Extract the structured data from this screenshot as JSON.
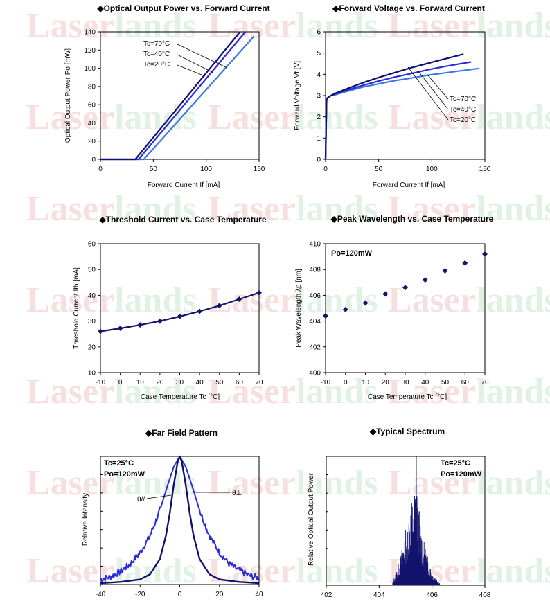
{
  "watermark": {
    "part1": "Laser",
    "part2": "lands"
  },
  "colors": {
    "dark": "#101070",
    "mid": "#2a2ad8",
    "light": "#3a78e6",
    "marker": "#14146e",
    "axis": "#000000"
  },
  "chart_data": [
    {
      "type": "line",
      "title": "◆Optical Output Power vs. Forward Current",
      "xlabel": "Forward Current If [mA]",
      "ylabel": "Optical Output Power Po [mW]",
      "xlim": [
        0,
        150
      ],
      "ylim": [
        0,
        140
      ],
      "xticks": [
        0,
        50,
        100,
        150
      ],
      "yticks": [
        0,
        20,
        40,
        60,
        80,
        100,
        120,
        140
      ],
      "grid": false,
      "series": [
        {
          "name": "Tc=70°C",
          "color": "light",
          "x": [
            0,
            41,
            145
          ],
          "y": [
            0,
            0,
            135
          ]
        },
        {
          "name": "Tc=40°C",
          "color": "mid",
          "x": [
            0,
            36,
            137
          ],
          "y": [
            0,
            0,
            140
          ]
        },
        {
          "name": "Tc=20°C",
          "color": "dark",
          "x": [
            0,
            33,
            132
          ],
          "y": [
            0,
            0,
            140
          ]
        }
      ]
    },
    {
      "type": "line",
      "title": "◆Forward Voltage vs. Forward Current",
      "xlabel": "Forward Current If [mA]",
      "ylabel": "Forward Voltage Vf [V]",
      "xlim": [
        0,
        150
      ],
      "ylim": [
        0,
        6
      ],
      "xticks": [
        0,
        50,
        100,
        150
      ],
      "yticks": [
        0,
        1,
        2,
        3,
        4,
        5,
        6
      ],
      "grid": false,
      "series": [
        {
          "name": "Tc=70°C",
          "color": "light",
          "x": [
            0,
            1,
            2,
            5,
            10,
            20,
            35,
            50,
            65,
            80,
            95,
            110,
            125,
            145
          ],
          "y": [
            0,
            2.8,
            2.9,
            3.0,
            3.05,
            3.2,
            3.4,
            3.55,
            3.7,
            3.82,
            3.95,
            4.05,
            4.15,
            4.28
          ]
        },
        {
          "name": "Tc=40°C",
          "color": "mid",
          "x": [
            0,
            1,
            2,
            5,
            10,
            20,
            35,
            50,
            65,
            80,
            95,
            110,
            125,
            137
          ],
          "y": [
            0,
            2.8,
            2.9,
            3.0,
            3.1,
            3.25,
            3.48,
            3.68,
            3.87,
            4.03,
            4.2,
            4.35,
            4.48,
            4.58
          ]
        },
        {
          "name": "Tc=20°C",
          "color": "dark",
          "x": [
            0,
            1,
            2,
            5,
            10,
            20,
            35,
            50,
            65,
            80,
            95,
            110,
            130
          ],
          "y": [
            0,
            2.8,
            2.9,
            3.0,
            3.12,
            3.32,
            3.6,
            3.85,
            4.08,
            4.3,
            4.5,
            4.7,
            4.95
          ]
        }
      ],
      "annotations": [
        "Tc=70°C",
        "Tc=40°C",
        "Tc=20°C"
      ]
    },
    {
      "type": "line",
      "title": "◆Threshold Current vs. Case Temperature",
      "xlabel": "Case Temperature Tc [°C]",
      "ylabel": "Threshold Current Ith [mA]",
      "xlim": [
        -10,
        70
      ],
      "ylim": [
        10,
        60
      ],
      "xticks": [
        -10,
        0,
        10,
        20,
        30,
        40,
        50,
        60,
        70
      ],
      "yticks": [
        10,
        20,
        30,
        40,
        50,
        60
      ],
      "grid": false,
      "x": [
        -10,
        0,
        10,
        20,
        30,
        40,
        50,
        60,
        70
      ],
      "y": [
        26,
        27.2,
        28.5,
        30,
        31.8,
        33.8,
        36,
        38.5,
        41
      ]
    },
    {
      "type": "scatter",
      "title": "◆Peak Wavelength vs. Case Temperature",
      "xlabel": "Case Temperature Tc [°C]",
      "ylabel": "Peak Wavelength λp [nm]",
      "xlim": [
        -10,
        70
      ],
      "ylim": [
        400,
        410
      ],
      "xticks": [
        -10,
        0,
        10,
        20,
        30,
        40,
        50,
        60,
        70
      ],
      "yticks": [
        400,
        402,
        404,
        406,
        408,
        410
      ],
      "grid": false,
      "annotation": "Po=120mW",
      "x": [
        -10,
        0,
        10,
        20,
        30,
        40,
        50,
        60,
        70
      ],
      "y": [
        404.4,
        404.9,
        405.4,
        406.1,
        406.6,
        407.2,
        407.9,
        408.5,
        409.2
      ]
    },
    {
      "type": "line",
      "title": "◆Far Field Pattern",
      "xlabel": "",
      "ylabel": "Relative Intensity",
      "xlim": [
        -40,
        40
      ],
      "ylim": [
        0,
        1
      ],
      "xticks": [
        -40,
        -20,
        0,
        20,
        40
      ],
      "grid": false,
      "annotations": [
        "Tc=25°C",
        "Po=120mW",
        "θ//",
        "θ⊥"
      ],
      "series": [
        {
          "name": "θ//",
          "color": "dark",
          "x": [
            -40,
            -30,
            -20,
            -15,
            -10,
            -7,
            -5,
            -3,
            -1,
            0,
            1,
            3,
            5,
            7,
            10,
            15,
            20,
            30,
            40
          ],
          "y": [
            0.01,
            0.02,
            0.04,
            0.08,
            0.2,
            0.38,
            0.56,
            0.78,
            0.96,
            1.0,
            0.96,
            0.78,
            0.56,
            0.38,
            0.2,
            0.08,
            0.04,
            0.02,
            0.01
          ]
        },
        {
          "name": "θ⊥",
          "color": "mid",
          "x": [
            -40,
            -35,
            -30,
            -25,
            -20,
            -15,
            -10,
            -6,
            -3,
            0,
            3,
            6,
            10,
            15,
            20,
            25,
            30,
            35,
            40
          ],
          "y": [
            0.04,
            0.06,
            0.1,
            0.16,
            0.25,
            0.38,
            0.58,
            0.78,
            0.92,
            1.0,
            0.92,
            0.78,
            0.58,
            0.38,
            0.25,
            0.16,
            0.11,
            0.07,
            0.05
          ]
        }
      ]
    },
    {
      "type": "bar",
      "title": "◆Typical Spectrum",
      "xlabel": "",
      "ylabel": "Relative Optical Output Power",
      "xlim": [
        402,
        408
      ],
      "ylim": [
        0,
        1
      ],
      "xticks": [
        402,
        404,
        406,
        408
      ],
      "grid": false,
      "annotations": [
        "Tc=25°C",
        "Po=120mW"
      ],
      "peak": 405.4,
      "envelope_x": [
        404.5,
        404.8,
        405.0,
        405.2,
        405.4,
        405.6,
        405.8,
        406.0,
        406.3
      ],
      "envelope_y": [
        0.02,
        0.25,
        0.55,
        0.75,
        1.0,
        0.5,
        0.3,
        0.12,
        0.02
      ]
    }
  ]
}
